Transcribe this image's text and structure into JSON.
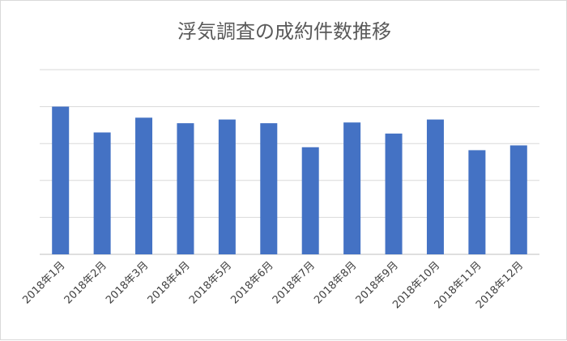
{
  "chart_data": {
    "type": "bar",
    "title": "浮気調査の成約件数推移",
    "xlabel": "",
    "ylabel": "",
    "categories": [
      "2018年1月",
      "2018年2月",
      "2018年3月",
      "2018年4月",
      "2018年5月",
      "2018年6月",
      "2018年7月",
      "2018年8月",
      "2018年9月",
      "2018年10月",
      "2018年11月",
      "2018年12月"
    ],
    "values": [
      4.0,
      3.3,
      3.7,
      3.55,
      3.65,
      3.55,
      2.9,
      3.57,
      3.27,
      3.65,
      2.82,
      2.95
    ],
    "ylim": [
      0,
      5
    ],
    "y_ticks_shown": false,
    "grid": true,
    "legend": "none",
    "colors": {
      "bar": "#4472c4",
      "grid": "#d9d9d9",
      "axis": "#bfbfbf",
      "title": "#595959",
      "label": "#404040"
    }
  }
}
